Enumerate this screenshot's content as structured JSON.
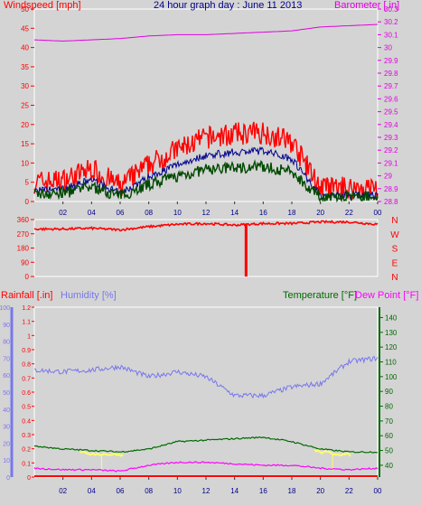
{
  "header": {
    "wind_label": "Windspeed [mph]",
    "title": "24 hour graph day : June 11 2013",
    "baro_label": "Barometer [.in]"
  },
  "colors": {
    "wind": "#ff0000",
    "gust": "#ff0000",
    "avg": "#004a00",
    "dark": "#00008b",
    "baro": "#e000e0",
    "dir": "#ff0000",
    "rain": "#ff0000",
    "humidity": "#7777ee",
    "temp": "#006a00",
    "dew": "#ff00ff",
    "solar_hi": "#ffff66"
  },
  "x_ticks": [
    "02",
    "04",
    "06",
    "08",
    "10",
    "12",
    "14",
    "16",
    "18",
    "20",
    "22",
    "00"
  ],
  "chart_data": [
    {
      "type": "line",
      "title": "24 hour graph day : June 11 2013",
      "x": [
        "00",
        "02",
        "04",
        "06",
        "08",
        "10",
        "12",
        "14",
        "16",
        "18",
        "20",
        "22",
        "00"
      ],
      "ylabel_left": "Windspeed [mph]",
      "ylabel_right": "Barometer [.in]",
      "ylim_left": [
        0,
        50
      ],
      "ylim_right": [
        28.8,
        30.3
      ],
      "yticks_left": [
        "0",
        "5",
        "10",
        "15",
        "20",
        "25",
        "30",
        "35",
        "40",
        "45",
        "50"
      ],
      "yticks_right": [
        "28.8",
        "28.9",
        "29",
        "29.1",
        "29.2",
        "29.3",
        "29.4",
        "29.5",
        "29.6",
        "29.7",
        "29.8",
        "29.9",
        "30",
        "30.1",
        "30.2",
        "30.3"
      ],
      "series": [
        {
          "name": "Windspeed [mph]",
          "axis": "left",
          "values": [
            3.5,
            4,
            7,
            2.5,
            8,
            12,
            15,
            16,
            16.5,
            14,
            2,
            2,
            2
          ]
        },
        {
          "name": "Barometer [.in]",
          "axis": "right",
          "values": [
            30.06,
            30.05,
            30.06,
            30.07,
            30.09,
            30.1,
            30.1,
            30.11,
            30.12,
            30.13,
            30.16,
            30.17,
            30.18
          ]
        }
      ]
    },
    {
      "type": "line",
      "ylim": [
        0,
        360
      ],
      "yticks": [
        "0",
        "90",
        "180",
        "270",
        "360"
      ],
      "right_labels": [
        "N",
        "W",
        "S",
        "E",
        "N"
      ],
      "series": [
        {
          "values": [
            300,
            300,
            305,
            295,
            315,
            330,
            335,
            325,
            335,
            335,
            345,
            345,
            330
          ]
        }
      ]
    },
    {
      "type": "line",
      "x": [
        "00",
        "02",
        "04",
        "06",
        "08",
        "10",
        "12",
        "14",
        "16",
        "18",
        "20",
        "22",
        "00"
      ],
      "ylabel_rain": "Rainfall [.in]",
      "ylabel_hum": "Humidity [%]",
      "ylabel_temp": "Temperature [°F]",
      "ylabel_dew": "Dew Point [°F]",
      "yticks_rain": [
        "0",
        "0.1",
        "0.2",
        "0.3",
        "0.4",
        "0.5",
        "0.6",
        "0.7",
        "0.8",
        "0.9",
        "1",
        "1.1",
        "1.2"
      ],
      "yticks_hum": [
        "0",
        "10",
        "20",
        "30",
        "40",
        "50",
        "60",
        "70",
        "80",
        "90",
        "100"
      ],
      "yticks_temp": [
        "40",
        "50",
        "60",
        "70",
        "80",
        "90",
        "100",
        "110",
        "120",
        "130",
        "140"
      ],
      "ylim_rain": [
        0,
        1.2
      ],
      "ylim_hum": [
        0,
        100
      ],
      "ylim_temp": [
        32,
        147
      ],
      "series": [
        {
          "name": "Humidity [%]",
          "values": [
            63,
            62,
            63,
            65,
            59,
            62,
            59,
            48,
            48,
            53,
            55,
            68,
            70
          ]
        },
        {
          "name": "Temperature [°F]",
          "values": [
            53,
            51,
            50,
            49,
            51,
            56,
            57,
            58,
            59,
            56,
            51,
            49,
            49
          ]
        },
        {
          "name": "Dew Point [°F]",
          "values": [
            38,
            37,
            37,
            36,
            40,
            42,
            42,
            41,
            40,
            40,
            38,
            37,
            38
          ]
        },
        {
          "name": "Rainfall [.in]",
          "values": [
            0,
            0,
            0,
            0,
            0,
            0,
            0,
            0,
            0,
            0,
            0,
            0,
            0
          ]
        }
      ]
    }
  ]
}
